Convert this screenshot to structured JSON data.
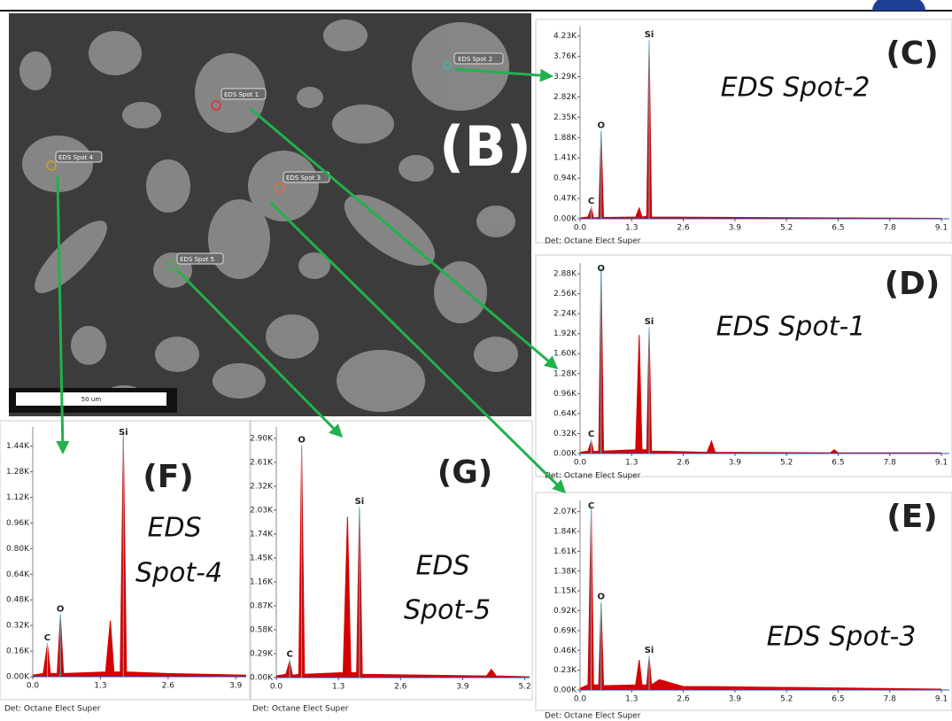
{
  "figure_label": "(B)",
  "sem_image": {
    "spots": [
      "EDS Spot 1",
      "EDS Spot 2",
      "EDS Spot 3",
      "EDS Spot 4",
      "EDS Spot 5"
    ],
    "scale_bar": "50 um"
  },
  "chart_data": [
    {
      "type": "area",
      "title": "(C)",
      "subtitle_lines": [
        "EDS Spot-2"
      ],
      "footer": "Det: Octane Elect Super",
      "color": "#d40000",
      "x": [
        0,
        0.2,
        0.28,
        0.34,
        0.47,
        0.53,
        0.59,
        1.4,
        1.49,
        1.56,
        1.68,
        1.74,
        1.8,
        9.1
      ],
      "values": [
        20,
        40,
        250,
        20,
        30,
        2000,
        30,
        40,
        250,
        40,
        60,
        4100,
        40,
        10
      ],
      "peak_labels": [
        {
          "text": "C",
          "x": 0.28
        },
        {
          "text": "O",
          "x": 0.53
        },
        {
          "text": "Si",
          "x": 1.74
        }
      ],
      "xlim": [
        0,
        9.3
      ],
      "ylim": [
        0,
        4450
      ],
      "xticks": [
        {
          "value": 0,
          "label": "0.0"
        },
        1.3,
        2.6,
        3.9,
        5.2,
        6.5,
        7.8,
        9.1
      ],
      "yticks": [
        {
          "value": 0,
          "label": "0.00K"
        },
        {
          "value": 470,
          "label": "0.47K"
        },
        {
          "value": 940,
          "label": "0.94K"
        },
        {
          "value": 1410,
          "label": "1.41K"
        },
        {
          "value": 1880,
          "label": "1.88K"
        },
        {
          "value": 2350,
          "label": "2.35K"
        },
        {
          "value": 2820,
          "label": "2.82K"
        },
        {
          "value": 3290,
          "label": "3.29K"
        },
        {
          "value": 3760,
          "label": "3.76K"
        },
        {
          "value": 4230,
          "label": "4.23K"
        }
      ]
    },
    {
      "type": "area",
      "title": "(D)",
      "subtitle_lines": [
        "EDS Spot-1"
      ],
      "footer": "Det: Octane Elect Super",
      "color": "#d40000",
      "x": [
        0,
        0.2,
        0.28,
        0.34,
        0.47,
        0.53,
        0.59,
        1.4,
        1.49,
        1.56,
        1.68,
        1.74,
        1.8,
        3.2,
        3.31,
        3.4,
        6.3,
        6.4,
        6.5,
        9.1
      ],
      "values": [
        20,
        40,
        200,
        30,
        40,
        2950,
        40,
        60,
        1900,
        60,
        60,
        2000,
        40,
        20,
        200,
        20,
        10,
        60,
        10,
        10
      ],
      "peak_labels": [
        {
          "text": "C",
          "x": 0.28
        },
        {
          "text": "O",
          "x": 0.53
        },
        {
          "text": "Si",
          "x": 1.74
        }
      ],
      "xlim": [
        0,
        9.3
      ],
      "ylim": [
        0,
        3050
      ],
      "xticks": [
        {
          "value": 0,
          "label": "0.0"
        },
        1.3,
        2.6,
        3.9,
        5.2,
        6.5,
        7.8,
        9.1
      ],
      "yticks": [
        {
          "value": 0,
          "label": "0.00K"
        },
        {
          "value": 320,
          "label": "0.32K"
        },
        {
          "value": 640,
          "label": "0.64K"
        },
        {
          "value": 960,
          "label": "0.96K"
        },
        {
          "value": 1280,
          "label": "1.28K"
        },
        {
          "value": 1600,
          "label": "1.60K"
        },
        {
          "value": 1920,
          "label": "1.92K"
        },
        {
          "value": 2240,
          "label": "2.24K"
        },
        {
          "value": 2560,
          "label": "2.56K"
        },
        {
          "value": 2880,
          "label": "2.88K"
        }
      ]
    },
    {
      "type": "area",
      "title": "(E)",
      "subtitle_lines": [
        "EDS Spot-3"
      ],
      "footer": "Det: Octane Elect Super",
      "color": "#d40000",
      "x": [
        0,
        0.2,
        0.28,
        0.34,
        0.47,
        0.53,
        0.59,
        1.4,
        1.49,
        1.56,
        1.68,
        1.74,
        1.8,
        2.0,
        2.3,
        2.6,
        3.3,
        9.1
      ],
      "values": [
        20,
        60,
        2100,
        60,
        60,
        1000,
        50,
        60,
        350,
        60,
        60,
        380,
        60,
        120,
        80,
        40,
        40,
        10
      ],
      "peak_labels": [
        {
          "text": "C",
          "x": 0.28
        },
        {
          "text": "O",
          "x": 0.53
        },
        {
          "text": "Si",
          "x": 1.74
        }
      ],
      "xlim": [
        0,
        9.3
      ],
      "ylim": [
        0,
        2200
      ],
      "xticks": [
        {
          "value": 0,
          "label": "0.0"
        },
        1.3,
        2.6,
        3.9,
        5.2,
        6.5,
        7.8,
        9.1
      ],
      "yticks": [
        {
          "value": 0,
          "label": "0.00K"
        },
        {
          "value": 230,
          "label": "0.23K"
        },
        {
          "value": 460,
          "label": "0.46K"
        },
        {
          "value": 690,
          "label": "0.69K"
        },
        {
          "value": 920,
          "label": "0.92K"
        },
        {
          "value": 1150,
          "label": "1.15K"
        },
        {
          "value": 1380,
          "label": "1.38K"
        },
        {
          "value": 1610,
          "label": "1.61K"
        },
        {
          "value": 1840,
          "label": "1.84K"
        },
        {
          "value": 2070,
          "label": "2.07K"
        }
      ]
    },
    {
      "type": "area",
      "title": "(F)",
      "subtitle_lines": [
        "EDS",
        "Spot-4"
      ],
      "footer": "Det: Octane Elect Super",
      "color": "#d40000",
      "x": [
        0,
        0.2,
        0.28,
        0.34,
        0.47,
        0.53,
        0.59,
        1.4,
        1.49,
        1.56,
        1.68,
        1.74,
        1.8,
        2.6,
        4.1
      ],
      "values": [
        10,
        20,
        200,
        20,
        20,
        380,
        20,
        30,
        350,
        30,
        30,
        1500,
        30,
        20,
        10
      ],
      "peak_labels": [
        {
          "text": "C",
          "x": 0.28
        },
        {
          "text": "O",
          "x": 0.53
        },
        {
          "text": "Si",
          "x": 1.74
        }
      ],
      "xlim": [
        0,
        4.1
      ],
      "ylim": [
        0,
        1560
      ],
      "xticks": [
        {
          "value": 0,
          "label": "0.0"
        },
        1.3,
        2.6,
        3.9
      ],
      "yticks": [
        {
          "value": 0,
          "label": "0.00K"
        },
        {
          "value": 160,
          "label": "0.16K"
        },
        {
          "value": 320,
          "label": "0.32K"
        },
        {
          "value": 480,
          "label": "0.48K"
        },
        {
          "value": 640,
          "label": "0.64K"
        },
        {
          "value": 800,
          "label": "0.80K"
        },
        {
          "value": 960,
          "label": "0.96K"
        },
        {
          "value": 1120,
          "label": "1.12K"
        },
        {
          "value": 1280,
          "label": "1.28K"
        },
        {
          "value": 1440,
          "label": "1.44K"
        }
      ]
    },
    {
      "type": "area",
      "title": "(G)",
      "subtitle_lines": [
        "EDS",
        "Spot-5"
      ],
      "footer": "Det: Octane Elect Super",
      "color": "#d40000",
      "x": [
        0,
        0.2,
        0.28,
        0.34,
        0.47,
        0.53,
        0.59,
        1.4,
        1.49,
        1.56,
        1.68,
        1.74,
        1.8,
        4.4,
        4.5,
        4.6,
        5.3
      ],
      "values": [
        20,
        40,
        200,
        30,
        40,
        2800,
        40,
        60,
        1950,
        60,
        60,
        2050,
        40,
        20,
        100,
        20,
        10
      ],
      "peak_labels": [
        {
          "text": "C",
          "x": 0.28
        },
        {
          "text": "O",
          "x": 0.53
        },
        {
          "text": "Si",
          "x": 1.74
        }
      ],
      "xlim": [
        0,
        5.3
      ],
      "ylim": [
        0,
        3040
      ],
      "xticks": [
        {
          "value": 0,
          "label": "0.0"
        },
        1.3,
        2.6,
        3.9,
        5.2
      ],
      "yticks": [
        {
          "value": 0,
          "label": "0.00K"
        },
        {
          "value": 290,
          "label": "0.29K"
        },
        {
          "value": 580,
          "label": "0.58K"
        },
        {
          "value": 870,
          "label": "0.87K"
        },
        {
          "value": 1160,
          "label": "1.16K"
        },
        {
          "value": 1450,
          "label": "1.45K"
        },
        {
          "value": 1740,
          "label": "1.74K"
        },
        {
          "value": 2030,
          "label": "2.03K"
        },
        {
          "value": 2320,
          "label": "2.32K"
        },
        {
          "value": 2610,
          "label": "2.61K"
        },
        {
          "value": 2900,
          "label": "2.90K"
        }
      ]
    }
  ]
}
